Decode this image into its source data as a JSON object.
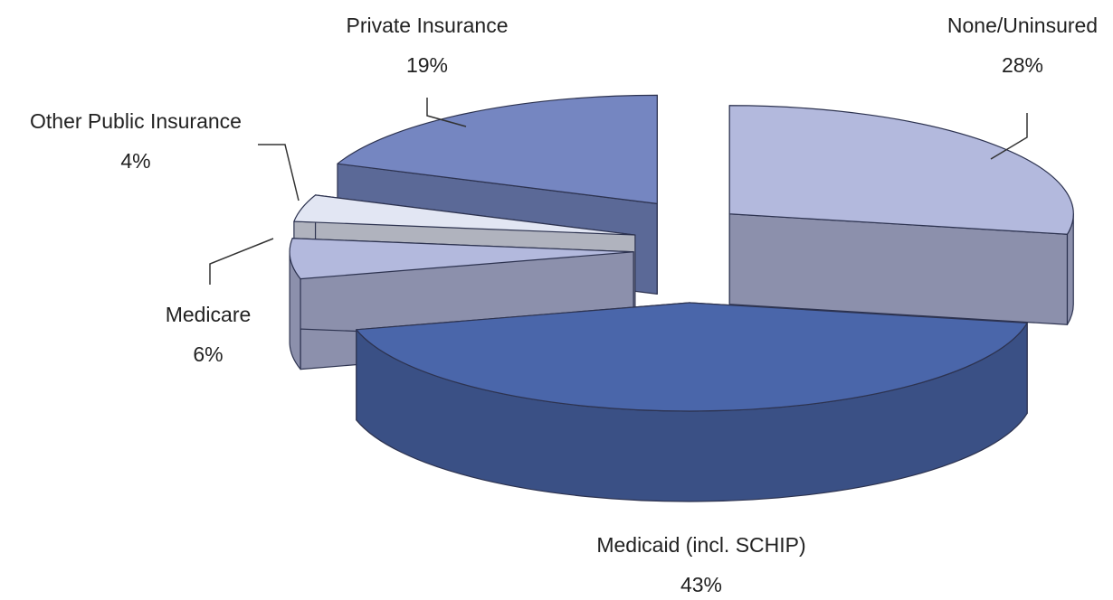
{
  "chart_data": {
    "type": "pie3d",
    "categories": [
      "None/Uninsured",
      "Medicaid (incl. SCHIP)",
      "Medicare",
      "Other Public Insurance",
      "Private Insurance"
    ],
    "values": [
      28,
      43,
      6,
      4,
      19
    ],
    "value_labels": [
      "28%",
      "43%",
      "6%",
      "4%",
      "19%"
    ],
    "colors": [
      "#b3b9dd",
      "#4a66aa",
      "#b3b9dd",
      "#e2e6f3",
      "#7586c1"
    ],
    "exploded": true
  }
}
